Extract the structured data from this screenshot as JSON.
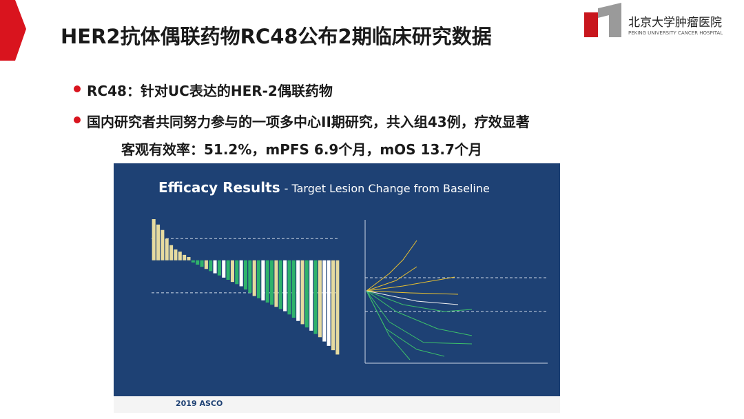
{
  "header": {
    "title": "HER2抗体偶联药物RC48公布2期临床研究数据",
    "logo_cn": "北京大学肿瘤医院",
    "logo_en": "PEKING UNIVERSITY CANCER HOSPITAL"
  },
  "bullets": [
    "RC48：针对UC表达的HER-2偶联药物",
    "国内研究者共同努力参与的一项多中心II期研究，共入组43例，疗效显著"
  ],
  "bullet_sub": "客观有效率：51.2%，mPFS 6.9个月，mOS 13.7个月",
  "figure": {
    "title": "Efficacy Results",
    "subtitle": "- Target Lesion Change from Baseline",
    "footer_logo": "2019 ASCO",
    "chart_data": {
      "type": "bar",
      "values": [
        38,
        33,
        28,
        20,
        14,
        10,
        8,
        5,
        3,
        -2,
        -4,
        -6,
        -8,
        -10,
        -12,
        -14,
        -16,
        -18,
        -20,
        -22,
        -24,
        -27,
        -30,
        -33,
        -35,
        -37,
        -39,
        -41,
        -43,
        -45,
        -47,
        -50,
        -53,
        -56,
        -59,
        -62,
        -65,
        -68,
        -71,
        -75,
        -79,
        -83,
        -87
      ],
      "colors": [
        "#e6dba0",
        "#e6dba0",
        "#e6dba0",
        "#e6dba0",
        "#e6dba0",
        "#e6dba0",
        "#e6dba0",
        "#e6dba0",
        "#e6dba0",
        "#2fb36b",
        "#2fb36b",
        "#2fb36b",
        "#e6dba0",
        "#2fb36b",
        "#ffffff",
        "#2fb36b",
        "#ffffff",
        "#2fb36b",
        "#e6dba0",
        "#2fb36b",
        "#ffffff",
        "#2fb36b",
        "#2fb36b",
        "#e6dba0",
        "#2fb36b",
        "#ffffff",
        "#2fb36b",
        "#2fb36b",
        "#e6dba0",
        "#2fb36b",
        "#ffffff",
        "#2fb36b",
        "#2fb36b",
        "#ffffff",
        "#e6dba0",
        "#2fb36b",
        "#ffffff",
        "#2fb36b",
        "#e6dba0",
        "#ffffff",
        "#ffffff",
        "#e6dba0",
        "#e6dba0"
      ],
      "ylim": [
        -95,
        45
      ],
      "reference_lines": [
        20,
        -30
      ]
    }
  }
}
